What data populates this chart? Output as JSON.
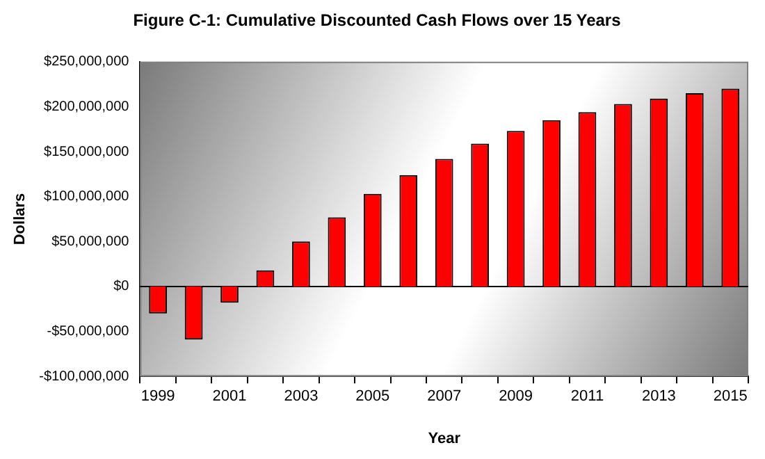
{
  "chart_data": {
    "type": "bar",
    "title": "Figure C-1: Cumulative Discounted Cash Flows over 15 Years",
    "xlabel": "Year",
    "ylabel": "Dollars",
    "categories": [
      "1999",
      null,
      "2001",
      null,
      "2003",
      null,
      "2005",
      null,
      "2007",
      null,
      "2009",
      null,
      "2011",
      null,
      "2013",
      null,
      "2015"
    ],
    "values": [
      -30000000,
      -59000000,
      -18000000,
      18000000,
      50000000,
      77000000,
      103000000,
      124000000,
      142000000,
      159000000,
      173000000,
      185000000,
      194000000,
      203000000,
      209000000,
      215000000,
      220000000
    ],
    "color": "#ff0000",
    "ylim": [
      -100000000,
      250000000
    ],
    "yticks": [
      {
        "value": -100000000,
        "label": "-$100,000,000"
      },
      {
        "value": -50000000,
        "label": "-$50,000,000"
      },
      {
        "value": 0,
        "label": "$0"
      },
      {
        "value": 50000000,
        "label": "$50,000,000"
      },
      {
        "value": 100000000,
        "label": "$100,000,000"
      },
      {
        "value": 150000000,
        "label": "$150,000,000"
      },
      {
        "value": 200000000,
        "label": "$200,000,000"
      },
      {
        "value": 250000000,
        "label": "$250,000,000"
      }
    ],
    "legend": false
  }
}
